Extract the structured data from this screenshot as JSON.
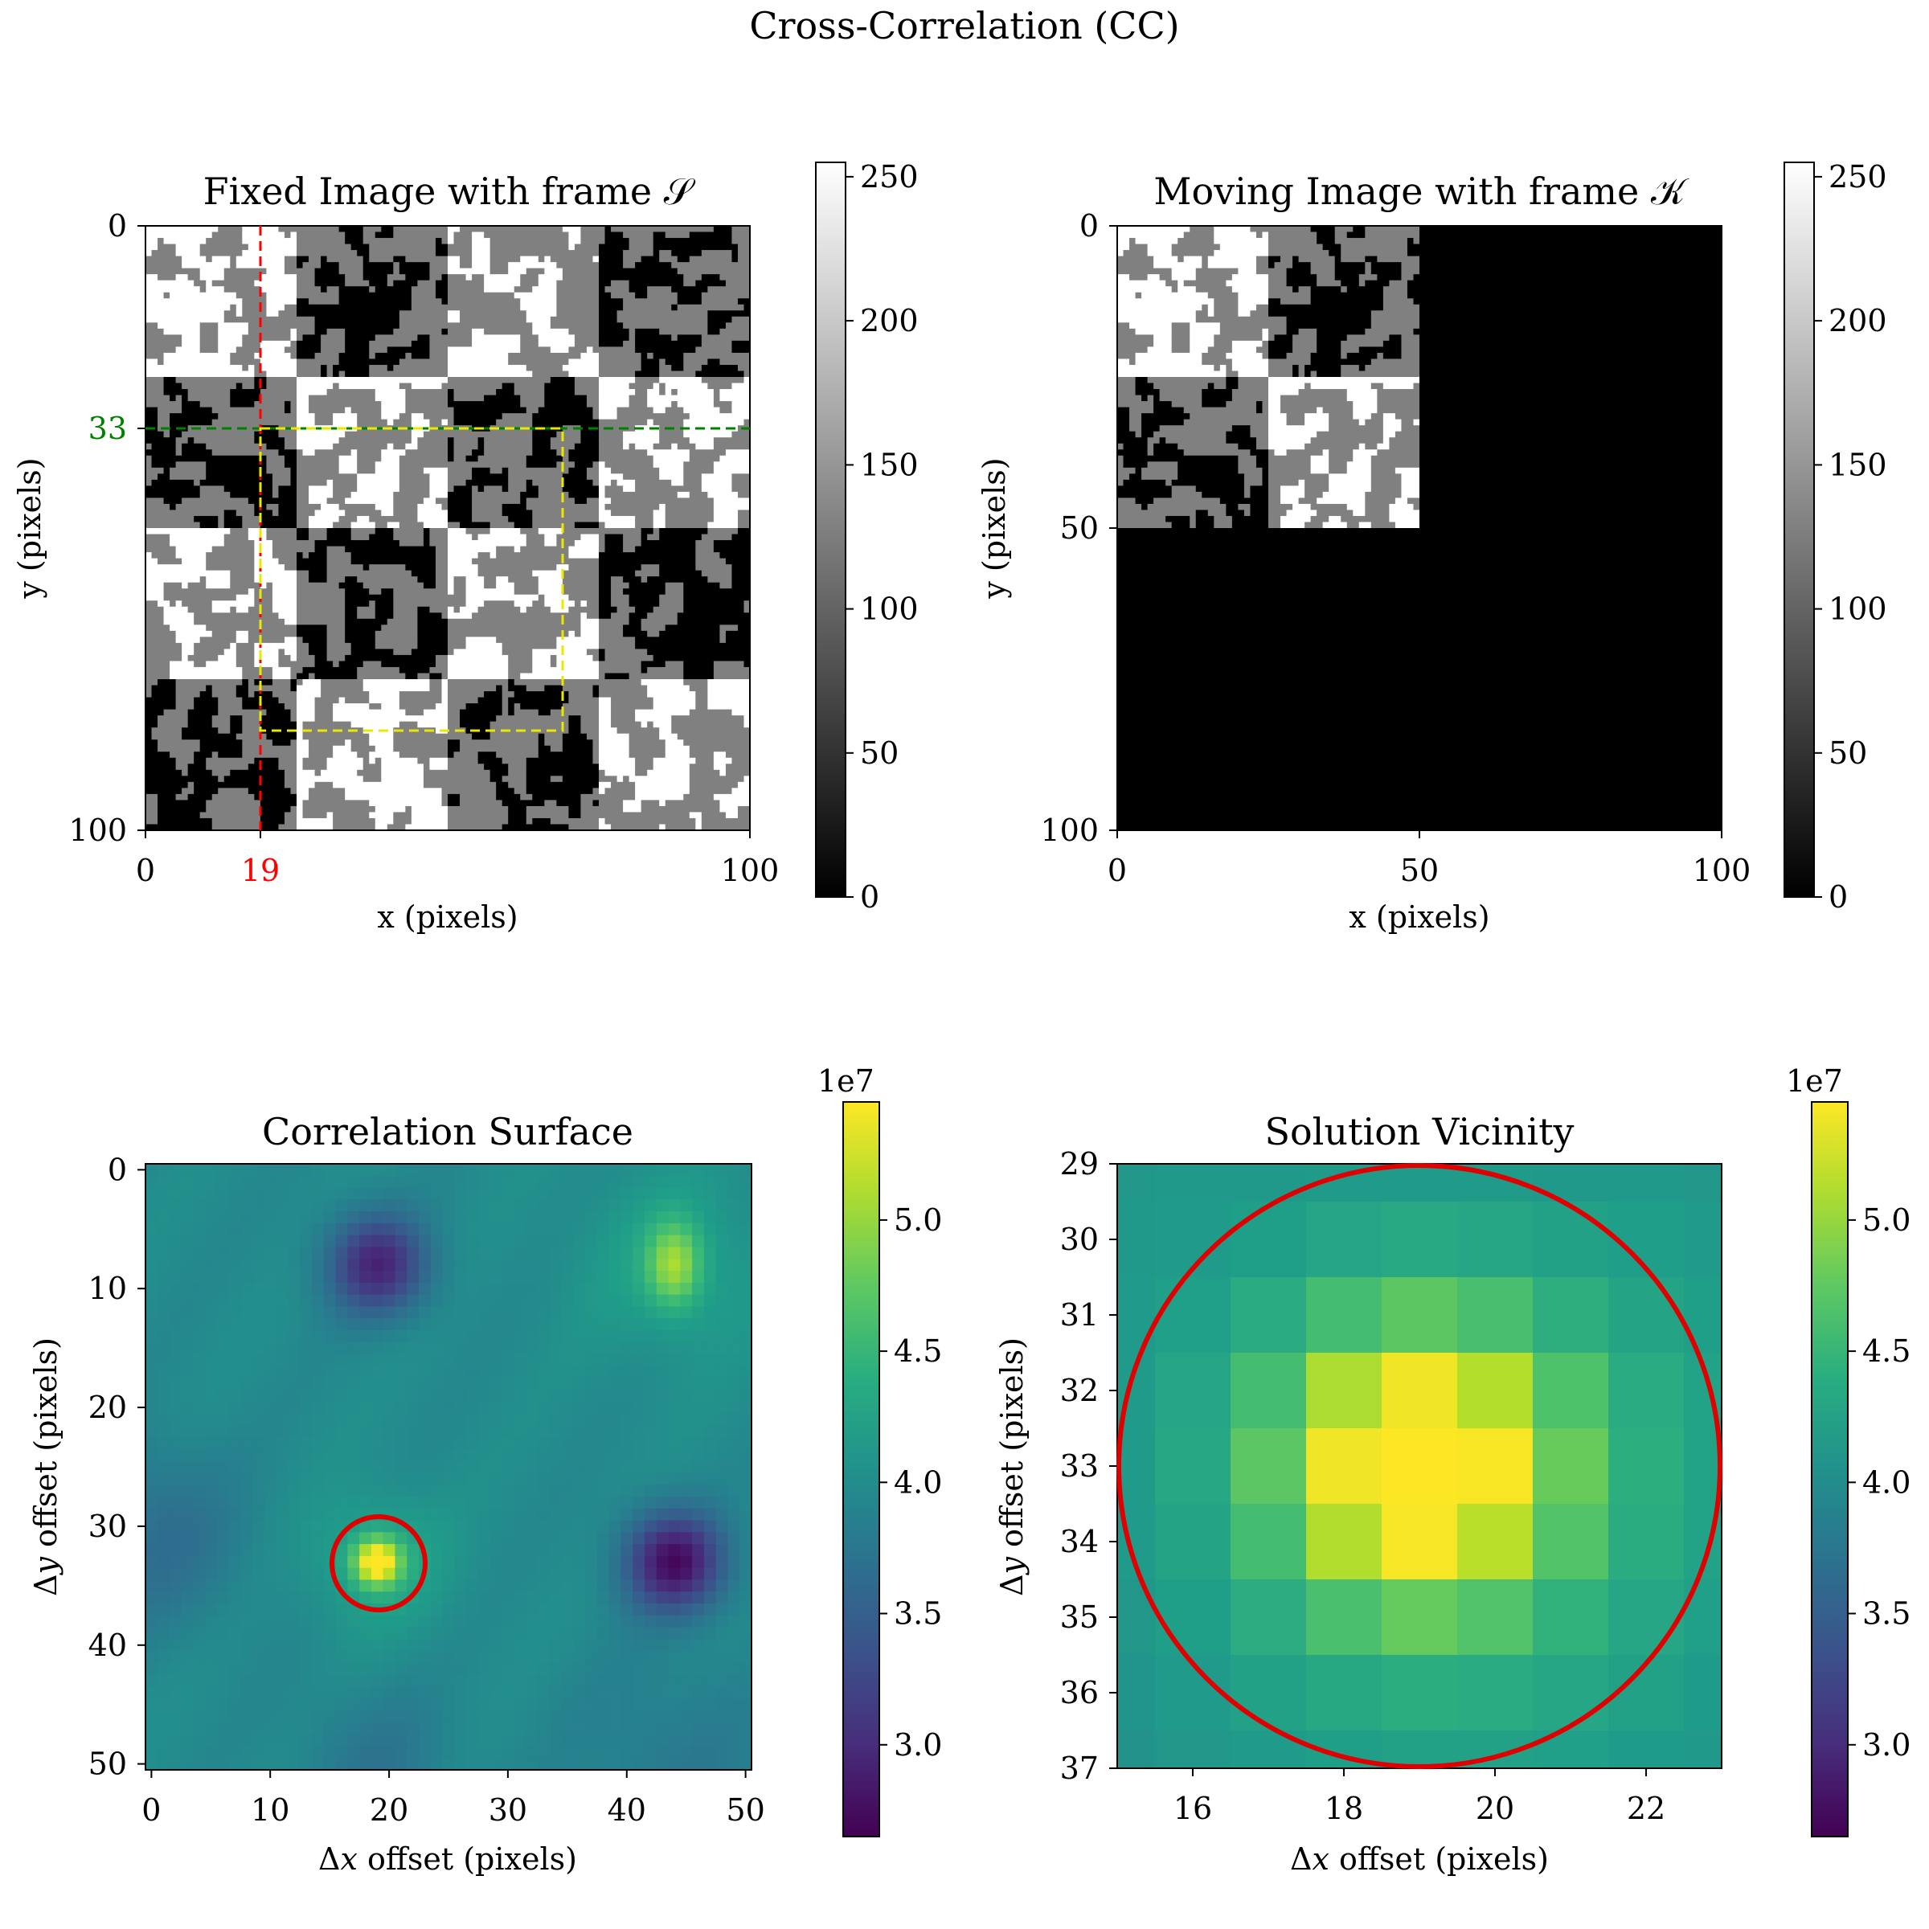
{
  "figure": {
    "title": "Cross-Correlation (CC)"
  },
  "chart_data": [
    {
      "type": "heatmap",
      "title": "Fixed Image with frame 𝒮",
      "xlabel": "x (pixels)",
      "ylabel": "y (pixels)",
      "xlim": [
        0,
        100
      ],
      "ylim": [
        100,
        0
      ],
      "xticks": [
        "0",
        "19",
        "100"
      ],
      "yticks": [
        "0",
        "33",
        "100"
      ],
      "colormap": "gray",
      "colorbar": {
        "min": 0,
        "max": 255,
        "ticks": [
          "0",
          "50",
          "100",
          "150",
          "200",
          "250"
        ]
      },
      "content": "checkerboard of 25-pixel tiles with binary speckle (values 0, 128, 255)",
      "annotations": [
        {
          "kind": "vertical-dashed-line",
          "x": 19,
          "color": "#ff0000",
          "label": "19"
        },
        {
          "kind": "horizontal-dashed-line",
          "y": 33,
          "color": "#008000",
          "label": "33"
        },
        {
          "kind": "dashed-rectangle",
          "x0": 19,
          "y0": 33,
          "x1": 69,
          "y1": 83,
          "color": "#e8e800"
        }
      ]
    },
    {
      "type": "heatmap",
      "title": "Moving Image with frame 𝒦",
      "xlabel": "x (pixels)",
      "ylabel": "y (pixels)",
      "xlim": [
        0,
        100
      ],
      "ylim": [
        100,
        0
      ],
      "xticks": [
        "0",
        "50",
        "100"
      ],
      "yticks": [
        "0",
        "50",
        "100"
      ],
      "colormap": "gray",
      "colorbar": {
        "min": 0,
        "max": 255,
        "ticks": [
          "0",
          "50",
          "100",
          "150",
          "200",
          "250"
        ]
      },
      "content": "50x50 checkerboard patch at top-left (tiles 25 px), remaining area 0"
    },
    {
      "type": "heatmap",
      "title": "Correlation Surface",
      "xlabel": "Δx offset (pixels)",
      "ylabel": "Δy offset (pixels)",
      "xlim": [
        0,
        50
      ],
      "ylim": [
        50,
        0
      ],
      "xticks": [
        "0",
        "10",
        "20",
        "30",
        "40",
        "50"
      ],
      "yticks": [
        "0",
        "10",
        "20",
        "30",
        "40",
        "50"
      ],
      "colormap": "viridis",
      "colorbar": {
        "min": 2.65,
        "max": 5.45,
        "ticks": [
          "3.0",
          "3.5",
          "4.0",
          "4.5",
          "5.0"
        ],
        "multiplier": "1e7"
      },
      "peaks": [
        {
          "x": 19,
          "y": 33,
          "value": 5.45
        },
        {
          "x": 44,
          "y": 8,
          "value": 4.9
        }
      ],
      "troughs": [
        {
          "x": 19,
          "y": 8,
          "value": 2.9
        },
        {
          "x": 44,
          "y": 33,
          "value": 2.7
        }
      ],
      "annotations": [
        {
          "kind": "circle",
          "x": 19,
          "y": 33,
          "r": 4,
          "color": "#e00000"
        }
      ]
    },
    {
      "type": "heatmap",
      "title": "Solution Vicinity",
      "xlabel": "Δx offset (pixels)",
      "ylabel": "Δy offset (pixels)",
      "xlim": [
        15,
        23
      ],
      "ylim": [
        37,
        29
      ],
      "xticks": [
        "16",
        "18",
        "20",
        "22"
      ],
      "yticks": [
        "29",
        "30",
        "31",
        "32",
        "33",
        "34",
        "35",
        "36",
        "37"
      ],
      "colormap": "viridis",
      "colorbar": {
        "min": 2.65,
        "max": 5.45,
        "ticks": [
          "3.0",
          "3.5",
          "4.0",
          "4.5",
          "5.0"
        ],
        "multiplier": "1e7"
      },
      "peak": {
        "x": 19,
        "y": 33,
        "value": 5.45
      },
      "annotations": [
        {
          "kind": "circle",
          "x": 19,
          "y": 33,
          "r": 4,
          "color": "#e00000"
        }
      ]
    }
  ]
}
